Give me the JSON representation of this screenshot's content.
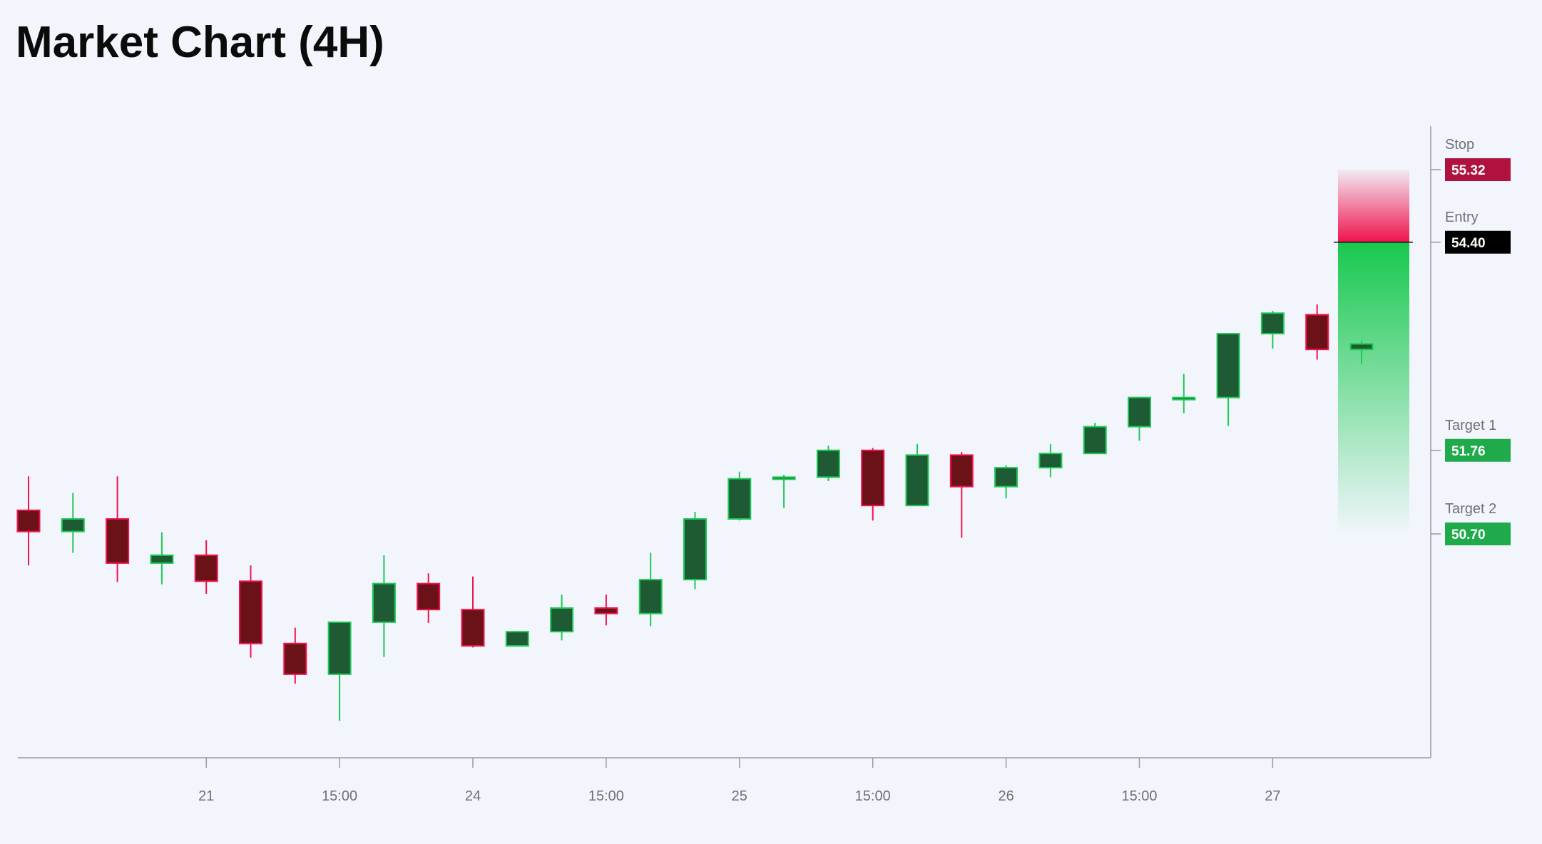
{
  "title": "Market Chart (4H)",
  "chart_data": {
    "type": "candlestick",
    "title": "Market Chart (4H)",
    "x_tick_labels": [
      "21",
      "15:00",
      "24",
      "15:00",
      "25",
      "15:00",
      "26",
      "15:00",
      "27"
    ],
    "candles": [
      {
        "o": 51.0,
        "h": 51.43,
        "l": 50.3,
        "c": 50.73
      },
      {
        "o": 50.73,
        "h": 51.22,
        "l": 50.46,
        "c": 50.89
      },
      {
        "o": 50.89,
        "h": 51.43,
        "l": 50.09,
        "c": 50.33
      },
      {
        "o": 50.33,
        "h": 50.72,
        "l": 50.06,
        "c": 50.43
      },
      {
        "o": 50.43,
        "h": 50.62,
        "l": 49.94,
        "c": 50.1
      },
      {
        "o": 50.1,
        "h": 50.3,
        "l": 49.13,
        "c": 49.31
      },
      {
        "o": 49.31,
        "h": 49.51,
        "l": 48.8,
        "c": 48.92
      },
      {
        "o": 48.92,
        "h": 49.58,
        "l": 48.33,
        "c": 49.58
      },
      {
        "o": 49.58,
        "h": 50.43,
        "l": 49.14,
        "c": 50.07
      },
      {
        "o": 50.07,
        "h": 50.2,
        "l": 49.57,
        "c": 49.74
      },
      {
        "o": 49.74,
        "h": 50.16,
        "l": 49.26,
        "c": 49.28
      },
      {
        "o": 49.28,
        "h": 49.47,
        "l": 49.27,
        "c": 49.46
      },
      {
        "o": 49.46,
        "h": 49.93,
        "l": 49.35,
        "c": 49.76
      },
      {
        "o": 49.76,
        "h": 49.93,
        "l": 49.54,
        "c": 49.69
      },
      {
        "o": 49.69,
        "h": 50.46,
        "l": 49.53,
        "c": 50.12
      },
      {
        "o": 50.12,
        "h": 50.98,
        "l": 50.0,
        "c": 50.89
      },
      {
        "o": 50.89,
        "h": 51.49,
        "l": 50.87,
        "c": 51.4
      },
      {
        "o": 51.4,
        "h": 51.45,
        "l": 51.03,
        "c": 51.42
      },
      {
        "o": 51.42,
        "h": 51.82,
        "l": 51.37,
        "c": 51.76
      },
      {
        "o": 51.76,
        "h": 51.79,
        "l": 50.87,
        "c": 51.06
      },
      {
        "o": 51.06,
        "h": 51.84,
        "l": 51.06,
        "c": 51.7
      },
      {
        "o": 51.7,
        "h": 51.74,
        "l": 50.65,
        "c": 51.3
      },
      {
        "o": 51.3,
        "h": 51.57,
        "l": 51.15,
        "c": 51.54
      },
      {
        "o": 51.54,
        "h": 51.84,
        "l": 51.42,
        "c": 51.72
      },
      {
        "o": 51.72,
        "h": 52.11,
        "l": 51.73,
        "c": 52.06
      },
      {
        "o": 52.06,
        "h": 52.43,
        "l": 51.88,
        "c": 52.43
      },
      {
        "o": 52.43,
        "h": 52.73,
        "l": 52.23,
        "c": 52.43
      },
      {
        "o": 52.43,
        "h": 53.24,
        "l": 52.07,
        "c": 53.24
      },
      {
        "o": 53.24,
        "h": 53.53,
        "l": 53.05,
        "c": 53.5
      },
      {
        "o": 53.48,
        "h": 53.61,
        "l": 52.91,
        "c": 53.04
      },
      {
        "o": 53.04,
        "h": 53.15,
        "l": 52.86,
        "c": 53.11
      }
    ],
    "levels": [
      {
        "name": "Stop",
        "value": 55.32,
        "color": "#b0123f"
      },
      {
        "name": "Entry",
        "value": 54.4,
        "color": "#000000"
      },
      {
        "name": "Target 1",
        "value": 51.76,
        "color": "#1fab4b"
      },
      {
        "name": "Target 2",
        "value": 50.7,
        "color": "#1fab4b"
      }
    ],
    "colors": {
      "up_fill": "#1e5a34",
      "up_border": "#1dc955",
      "down_fill": "#6b1219",
      "down_border": "#f0124e",
      "stop_zone": "#f0124e",
      "target_zone": "#18c84f"
    }
  }
}
